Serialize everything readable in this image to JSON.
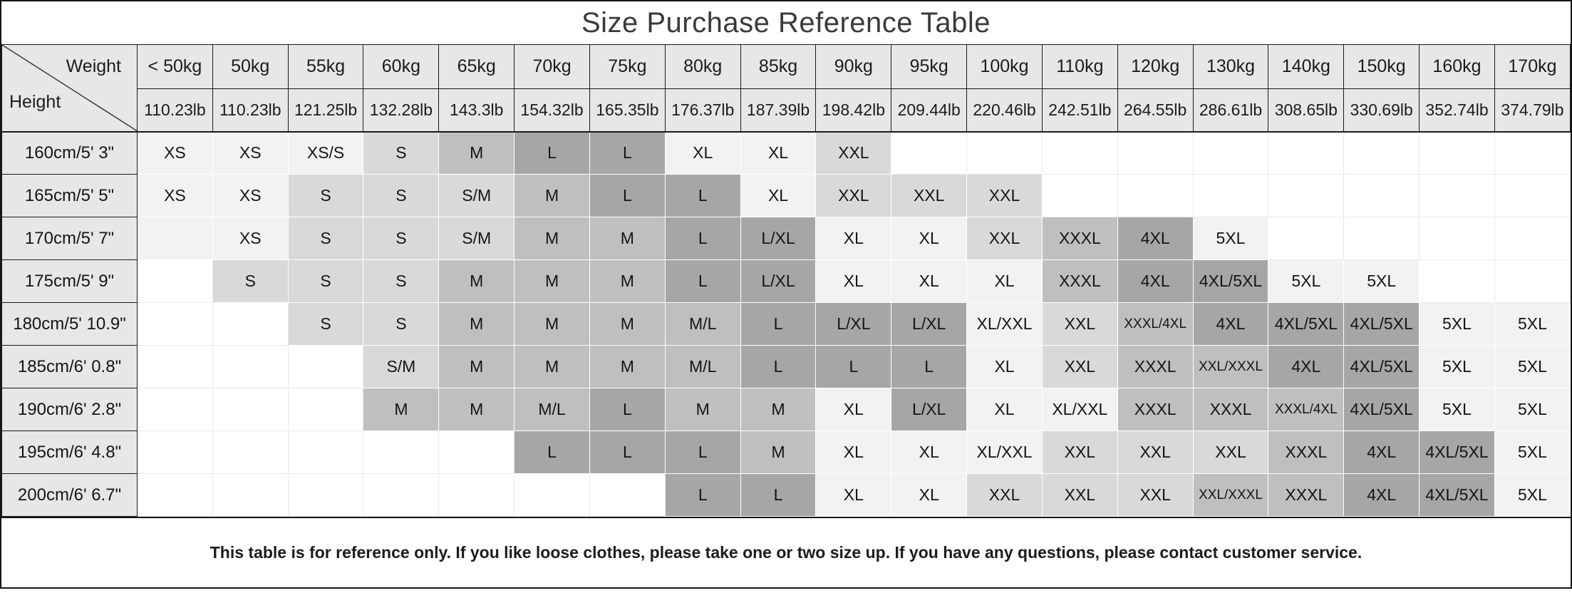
{
  "corner": {
    "weight_label": "Weight",
    "height_label": "Height"
  },
  "colors": {
    "w": "#ffffff",
    "g1": "#f2f2f2",
    "g2": "#d9d9d9",
    "g3": "#bfbfbf",
    "g4": "#a6a6a6",
    "header_bg": "#e7e7e7",
    "line_dark": "#1a1a1a",
    "line_light": "#e9e9e9"
  },
  "chart_data": {
    "type": "table",
    "title": "Size Purchase Reference Table",
    "note": "This table is for reference only. If you like loose clothes, please take one or two size up. If you have any questions, please contact customer service.",
    "columns": [
      {
        "kg": "< 50kg",
        "lb": "110.23lb"
      },
      {
        "kg": "50kg",
        "lb": "110.23lb"
      },
      {
        "kg": "55kg",
        "lb": "121.25lb"
      },
      {
        "kg": "60kg",
        "lb": "132.28lb"
      },
      {
        "kg": "65kg",
        "lb": "143.3lb"
      },
      {
        "kg": "70kg",
        "lb": "154.32lb"
      },
      {
        "kg": "75kg",
        "lb": "165.35lb"
      },
      {
        "kg": "80kg",
        "lb": "176.37lb"
      },
      {
        "kg": "85kg",
        "lb": "187.39lb"
      },
      {
        "kg": "90kg",
        "lb": "198.42lb"
      },
      {
        "kg": "95kg",
        "lb": "209.44lb"
      },
      {
        "kg": "100kg",
        "lb": "220.46lb"
      },
      {
        "kg": "110kg",
        "lb": "242.51lb"
      },
      {
        "kg": "120kg",
        "lb": "264.55lb"
      },
      {
        "kg": "130kg",
        "lb": "286.61lb"
      },
      {
        "kg": "140kg",
        "lb": "308.65lb"
      },
      {
        "kg": "150kg",
        "lb": "330.69lb"
      },
      {
        "kg": "160kg",
        "lb": "352.74lb"
      },
      {
        "kg": "170kg",
        "lb": "374.79lb"
      }
    ],
    "rows": [
      {
        "height": "160cm/5' 3\"",
        "values": [
          "XS",
          "XS",
          "XS/S",
          "S",
          "M",
          "L",
          "L",
          "XL",
          "XL",
          "XXL",
          "",
          "",
          "",
          "",
          "",
          "",
          "",
          "",
          ""
        ],
        "shades": [
          "g1",
          "g1",
          "g1",
          "g2",
          "g3",
          "g4",
          "g4",
          "g1",
          "g1",
          "g2",
          "w",
          "w",
          "w",
          "w",
          "w",
          "w",
          "w",
          "w",
          "w"
        ]
      },
      {
        "height": "165cm/5' 5\"",
        "values": [
          "XS",
          "XS",
          "S",
          "S",
          "S/M",
          "M",
          "L",
          "L",
          "XL",
          "XXL",
          "XXL",
          "XXL",
          "",
          "",
          "",
          "",
          "",
          "",
          ""
        ],
        "shades": [
          "g1",
          "g1",
          "g2",
          "g2",
          "g2",
          "g3",
          "g4",
          "g4",
          "g1",
          "g2",
          "g2",
          "g2",
          "w",
          "w",
          "w",
          "w",
          "w",
          "w",
          "w"
        ]
      },
      {
        "height": "170cm/5' 7\"",
        "values": [
          "",
          "XS",
          "S",
          "S",
          "S/M",
          "M",
          "M",
          "L",
          "L/XL",
          "XL",
          "XL",
          "XXL",
          "XXXL",
          "4XL",
          "5XL",
          "",
          "",
          "",
          ""
        ],
        "shades": [
          "g1",
          "g1",
          "g2",
          "g2",
          "g2",
          "g3",
          "g3",
          "g4",
          "g4",
          "g1",
          "g1",
          "g2",
          "g3",
          "g4",
          "g1",
          "w",
          "w",
          "w",
          "w"
        ]
      },
      {
        "height": "175cm/5' 9\"",
        "values": [
          "",
          "S",
          "S",
          "S",
          "M",
          "M",
          "M",
          "L",
          "L/XL",
          "XL",
          "XL",
          "XL",
          "XXXL",
          "4XL",
          "4XL/5XL",
          "5XL",
          "5XL",
          "",
          ""
        ],
        "shades": [
          "w",
          "g2",
          "g2",
          "g2",
          "g3",
          "g3",
          "g3",
          "g4",
          "g4",
          "g1",
          "g1",
          "g1",
          "g3",
          "g4",
          "g4",
          "g1",
          "g1",
          "w",
          "w"
        ]
      },
      {
        "height": "180cm/5' 10.9\"",
        "values": [
          "",
          "",
          "S",
          "S",
          "M",
          "M",
          "M",
          "M/L",
          "L",
          "L/XL",
          "L/XL",
          "XL/XXL",
          "XXL",
          "XXXL/4XL",
          "4XL",
          "4XL/5XL",
          "4XL/5XL",
          "5XL",
          "5XL"
        ],
        "shades": [
          "w",
          "w",
          "g2",
          "g2",
          "g3",
          "g3",
          "g3",
          "g3",
          "g4",
          "g4",
          "g4",
          "g1",
          "g2",
          "g3",
          "g4",
          "g4",
          "g4",
          "g1",
          "g1"
        ]
      },
      {
        "height": "185cm/6' 0.8\"",
        "values": [
          "",
          "",
          "",
          "S/M",
          "M",
          "M",
          "M",
          "M/L",
          "L",
          "L",
          "L",
          "XL",
          "XXL",
          "XXXL",
          "XXL/XXXL",
          "4XL",
          "4XL/5XL",
          "5XL",
          "5XL"
        ],
        "shades": [
          "w",
          "w",
          "w",
          "g2",
          "g3",
          "g3",
          "g3",
          "g3",
          "g4",
          "g4",
          "g4",
          "g1",
          "g2",
          "g3",
          "g3",
          "g4",
          "g4",
          "g1",
          "g1"
        ]
      },
      {
        "height": "190cm/6' 2.8\"",
        "values": [
          "",
          "",
          "",
          "M",
          "M",
          "M/L",
          "L",
          "M",
          "M",
          "XL",
          "L/XL",
          "XL",
          "XL/XXL",
          "XXXL",
          "XXXL",
          "XXXL/4XL",
          "4XL/5XL",
          "5XL",
          "5XL"
        ],
        "shades": [
          "w",
          "w",
          "w",
          "g3",
          "g3",
          "g3",
          "g4",
          "g3",
          "g3",
          "g1",
          "g4",
          "g1",
          "g1",
          "g3",
          "g3",
          "g3",
          "g4",
          "g1",
          "g1"
        ]
      },
      {
        "height": "195cm/6' 4.8\"",
        "values": [
          "",
          "",
          "",
          "",
          "",
          "L",
          "L",
          "L",
          "M",
          "XL",
          "XL",
          "XL/XXL",
          "XXL",
          "XXL",
          "XXL",
          "XXXL",
          "4XL",
          "4XL/5XL",
          "5XL"
        ],
        "shades": [
          "w",
          "w",
          "w",
          "w",
          "w",
          "g4",
          "g4",
          "g4",
          "g3",
          "g1",
          "g1",
          "g1",
          "g2",
          "g2",
          "g2",
          "g3",
          "g4",
          "g4",
          "g1"
        ]
      },
      {
        "height": "200cm/6' 6.7\"",
        "values": [
          "",
          "",
          "",
          "",
          "",
          "",
          "",
          "L",
          "L",
          "XL",
          "XL",
          "XXL",
          "XXL",
          "XXL",
          "XXL/XXXL",
          "XXXL",
          "4XL",
          "4XL/5XL",
          "5XL"
        ],
        "shades": [
          "w",
          "w",
          "w",
          "w",
          "w",
          "w",
          "w",
          "g4",
          "g4",
          "g1",
          "g1",
          "g2",
          "g2",
          "g2",
          "g3",
          "g3",
          "g4",
          "g4",
          "g1"
        ]
      }
    ]
  }
}
